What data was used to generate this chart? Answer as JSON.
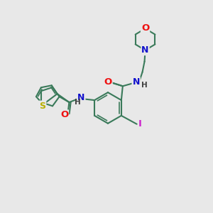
{
  "background_color": "#e8e8e8",
  "bond_color": "#3a7a5a",
  "atom_colors": {
    "S": "#b8b000",
    "O": "#ee1111",
    "N": "#1111cc",
    "I": "#cc22cc",
    "H_label": "#404040"
  },
  "figsize": [
    3.0,
    3.0
  ],
  "dpi": 100
}
